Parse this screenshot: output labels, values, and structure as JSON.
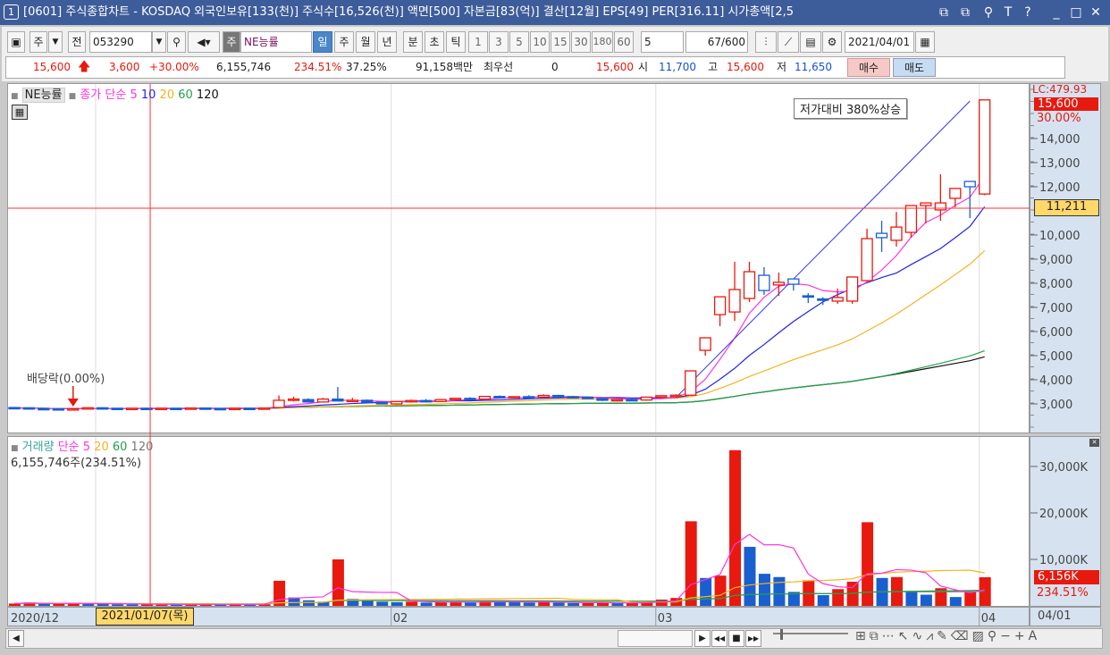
{
  "title": {
    "num": "1",
    "text": "[0601] 주식종합차트 - KOSDAQ 외국인보유[133(천)] 주식수[16,526(천)] 액면[500] 자본금[83(억)] 결산[12월] EPS[49] PER[316.11] 시가총액[2,5",
    "buttons": [
      "⧉",
      "⧉",
      "⚲",
      "T",
      "?",
      "_",
      "□",
      "✕"
    ]
  },
  "toolbar": {
    "market": "주",
    "all": "전",
    "code": "053290",
    "name_type": "주",
    "name": "NE능률",
    "periods": [
      "일",
      "주",
      "월",
      "년",
      "분",
      "초",
      "틱"
    ],
    "active_period": "일",
    "intervals": [
      "1",
      "3",
      "5",
      "10",
      "15",
      "30",
      "180",
      "60"
    ],
    "count_select": "5",
    "bar_count": "67",
    "bar_max": "/600",
    "date": "2021/04/01"
  },
  "quote": {
    "price": "15,600",
    "change": "3,600",
    "change_pct": "+30.00%",
    "volume": "6,155,746",
    "volume_pct": "234.51%",
    "turnover": "37.25%",
    "amount": "91,158백만",
    "best_label": "최우선",
    "best_value": "0",
    "best_price": "15,600",
    "open_label": "시",
    "open": "11,700",
    "high_label": "고",
    "high": "15,600",
    "low_label": "저",
    "low": "11,650",
    "buy": "매수",
    "sell": "매도"
  },
  "legend": {
    "stock": "NE능률",
    "ma_title": "종가 단순",
    "ma": [
      "5",
      "10",
      "20",
      "60",
      "120"
    ],
    "vol_title": "거래량",
    "vol_ma_title": "단순",
    "vol_ma": [
      "5",
      "20",
      "60",
      "120"
    ],
    "vol_value": "6,155,746주(234.51%)"
  },
  "annotations": {
    "dividend": "배당락(0.00%)",
    "box": "저가대비 380%상승",
    "crosshair_price": "11,211",
    "crosshair_date": "2021/01/07(목)",
    "lc": "LC:479.93",
    "last_price": "15,600",
    "last_pct": "30.00%",
    "last_vol": "6,156K",
    "last_vol_pct": "234.51%"
  },
  "colors": {
    "up": "#e8190e",
    "down": "#1a5fd0",
    "ma5": "#ff33dd",
    "ma10": "#2222ee",
    "ma20": "#f5b320",
    "ma60": "#22a24a",
    "ma120": "#111111",
    "vma120": "#777777"
  },
  "chart_data": {
    "type": "candlestick",
    "price_ticks": [
      "14,000",
      "13,000",
      "12,000",
      "10,000",
      "9,000",
      "8,000",
      "7,000",
      "6,000",
      "5,000",
      "4,000",
      "3,000"
    ],
    "price_tick_values": [
      14000,
      13000,
      12000,
      10000,
      9000,
      8000,
      7000,
      6000,
      5000,
      4000,
      3000
    ],
    "volume_ticks": [
      "30,000K",
      "20,000K",
      "10,000K"
    ],
    "volume_tick_values": [
      30000,
      20000,
      10000
    ],
    "x_labels": [
      {
        "label": "2020/12",
        "bar": 0
      },
      {
        "label": "02",
        "bar": 26
      },
      {
        "label": "03",
        "bar": 44
      },
      {
        "label": "04",
        "bar": 66
      }
    ],
    "x_right_label": "04/01",
    "crosshair": {
      "bar": 9,
      "price": 11211
    },
    "dividend_bar": 4,
    "trendline": {
      "from": {
        "bar": 45,
        "price": 3260
      },
      "to": {
        "bar": 65,
        "price": 15550
      }
    },
    "bars_ohlcv_k": [
      [
        2850,
        2870,
        2830,
        2840,
        500
      ],
      [
        2840,
        2850,
        2800,
        2810,
        700
      ],
      [
        2810,
        2830,
        2790,
        2800,
        400
      ],
      [
        2800,
        2820,
        2770,
        2780,
        450
      ],
      [
        2780,
        2830,
        2760,
        2800,
        600
      ],
      [
        2800,
        2850,
        2790,
        2840,
        500
      ],
      [
        2840,
        2860,
        2810,
        2820,
        400
      ],
      [
        2820,
        2840,
        2800,
        2810,
        350
      ],
      [
        2810,
        2830,
        2800,
        2820,
        300
      ],
      [
        2820,
        2840,
        2800,
        2810,
        300
      ],
      [
        2810,
        2830,
        2790,
        2820,
        300
      ],
      [
        2820,
        2830,
        2800,
        2810,
        280
      ],
      [
        2810,
        2840,
        2800,
        2830,
        300
      ],
      [
        2830,
        2850,
        2800,
        2810,
        320
      ],
      [
        2810,
        2830,
        2790,
        2800,
        300
      ],
      [
        2800,
        2830,
        2790,
        2820,
        350
      ],
      [
        2820,
        2840,
        2800,
        2810,
        300
      ],
      [
        2810,
        2840,
        2800,
        2830,
        350
      ],
      [
        2850,
        3350,
        2840,
        3150,
        5400
      ],
      [
        3150,
        3300,
        3100,
        3200,
        1800
      ],
      [
        3180,
        3230,
        3050,
        3080,
        1200
      ],
      [
        3080,
        3250,
        3060,
        3200,
        900
      ],
      [
        3200,
        3700,
        3150,
        3120,
        10000
      ],
      [
        3130,
        3250,
        3100,
        3150,
        1500
      ],
      [
        3150,
        3180,
        3050,
        3070,
        1200
      ],
      [
        3070,
        3100,
        2980,
        3000,
        900
      ],
      [
        3000,
        3120,
        2970,
        3100,
        800
      ],
      [
        3100,
        3180,
        3060,
        3140,
        900
      ],
      [
        3140,
        3200,
        3080,
        3100,
        700
      ],
      [
        3100,
        3200,
        3080,
        3180,
        800
      ],
      [
        3180,
        3250,
        3150,
        3230,
        900
      ],
      [
        3230,
        3280,
        3180,
        3200,
        700
      ],
      [
        3200,
        3330,
        3180,
        3310,
        1000
      ],
      [
        3310,
        3350,
        3230,
        3260,
        900
      ],
      [
        3260,
        3320,
        3220,
        3300,
        800
      ],
      [
        3300,
        3360,
        3250,
        3280,
        700
      ],
      [
        3280,
        3400,
        3260,
        3350,
        900
      ],
      [
        3350,
        3380,
        3280,
        3300,
        700
      ],
      [
        3300,
        3330,
        3260,
        3280,
        600
      ],
      [
        3280,
        3310,
        3200,
        3220,
        600
      ],
      [
        3220,
        3260,
        3120,
        3150,
        700
      ],
      [
        3150,
        3200,
        3100,
        3180,
        600
      ],
      [
        3180,
        3220,
        3120,
        3160,
        600
      ],
      [
        3160,
        3300,
        3140,
        3280,
        900
      ],
      [
        3280,
        3360,
        3230,
        3340,
        1350
      ],
      [
        3340,
        3400,
        3300,
        3360,
        1700
      ],
      [
        3360,
        4370,
        3330,
        4370,
        18200
      ],
      [
        5220,
        5740,
        5000,
        5740,
        6000
      ],
      [
        6700,
        7440,
        6220,
        7440,
        6500
      ],
      [
        6810,
        8890,
        6440,
        7740,
        33500
      ],
      [
        7370,
        8890,
        7220,
        8480,
        12700
      ],
      [
        8330,
        8670,
        7520,
        7700,
        6900
      ],
      [
        7930,
        8440,
        7480,
        8040,
        6200
      ],
      [
        8180,
        8180,
        7700,
        7960,
        3000
      ],
      [
        7480,
        7590,
        7180,
        7460,
        5500
      ],
      [
        7350,
        7420,
        7100,
        7330,
        2300
      ],
      [
        7260,
        7780,
        7150,
        7410,
        3600
      ],
      [
        7260,
        8260,
        7150,
        8260,
        5200
      ],
      [
        8110,
        10260,
        8110,
        9850,
        18000
      ],
      [
        10070,
        10590,
        9300,
        9890,
        6000
      ],
      [
        9780,
        10960,
        9520,
        10330,
        6200
      ],
      [
        10110,
        11220,
        9890,
        11220,
        3000
      ],
      [
        11220,
        11330,
        10480,
        11330,
        2400
      ],
      [
        11040,
        12520,
        10590,
        11330,
        3800
      ],
      [
        11520,
        11930,
        11150,
        11930,
        1900
      ],
      [
        12220,
        12220,
        10700,
        12000,
        3000
      ],
      [
        11700,
        15600,
        11650,
        15600,
        6156
      ]
    ]
  }
}
